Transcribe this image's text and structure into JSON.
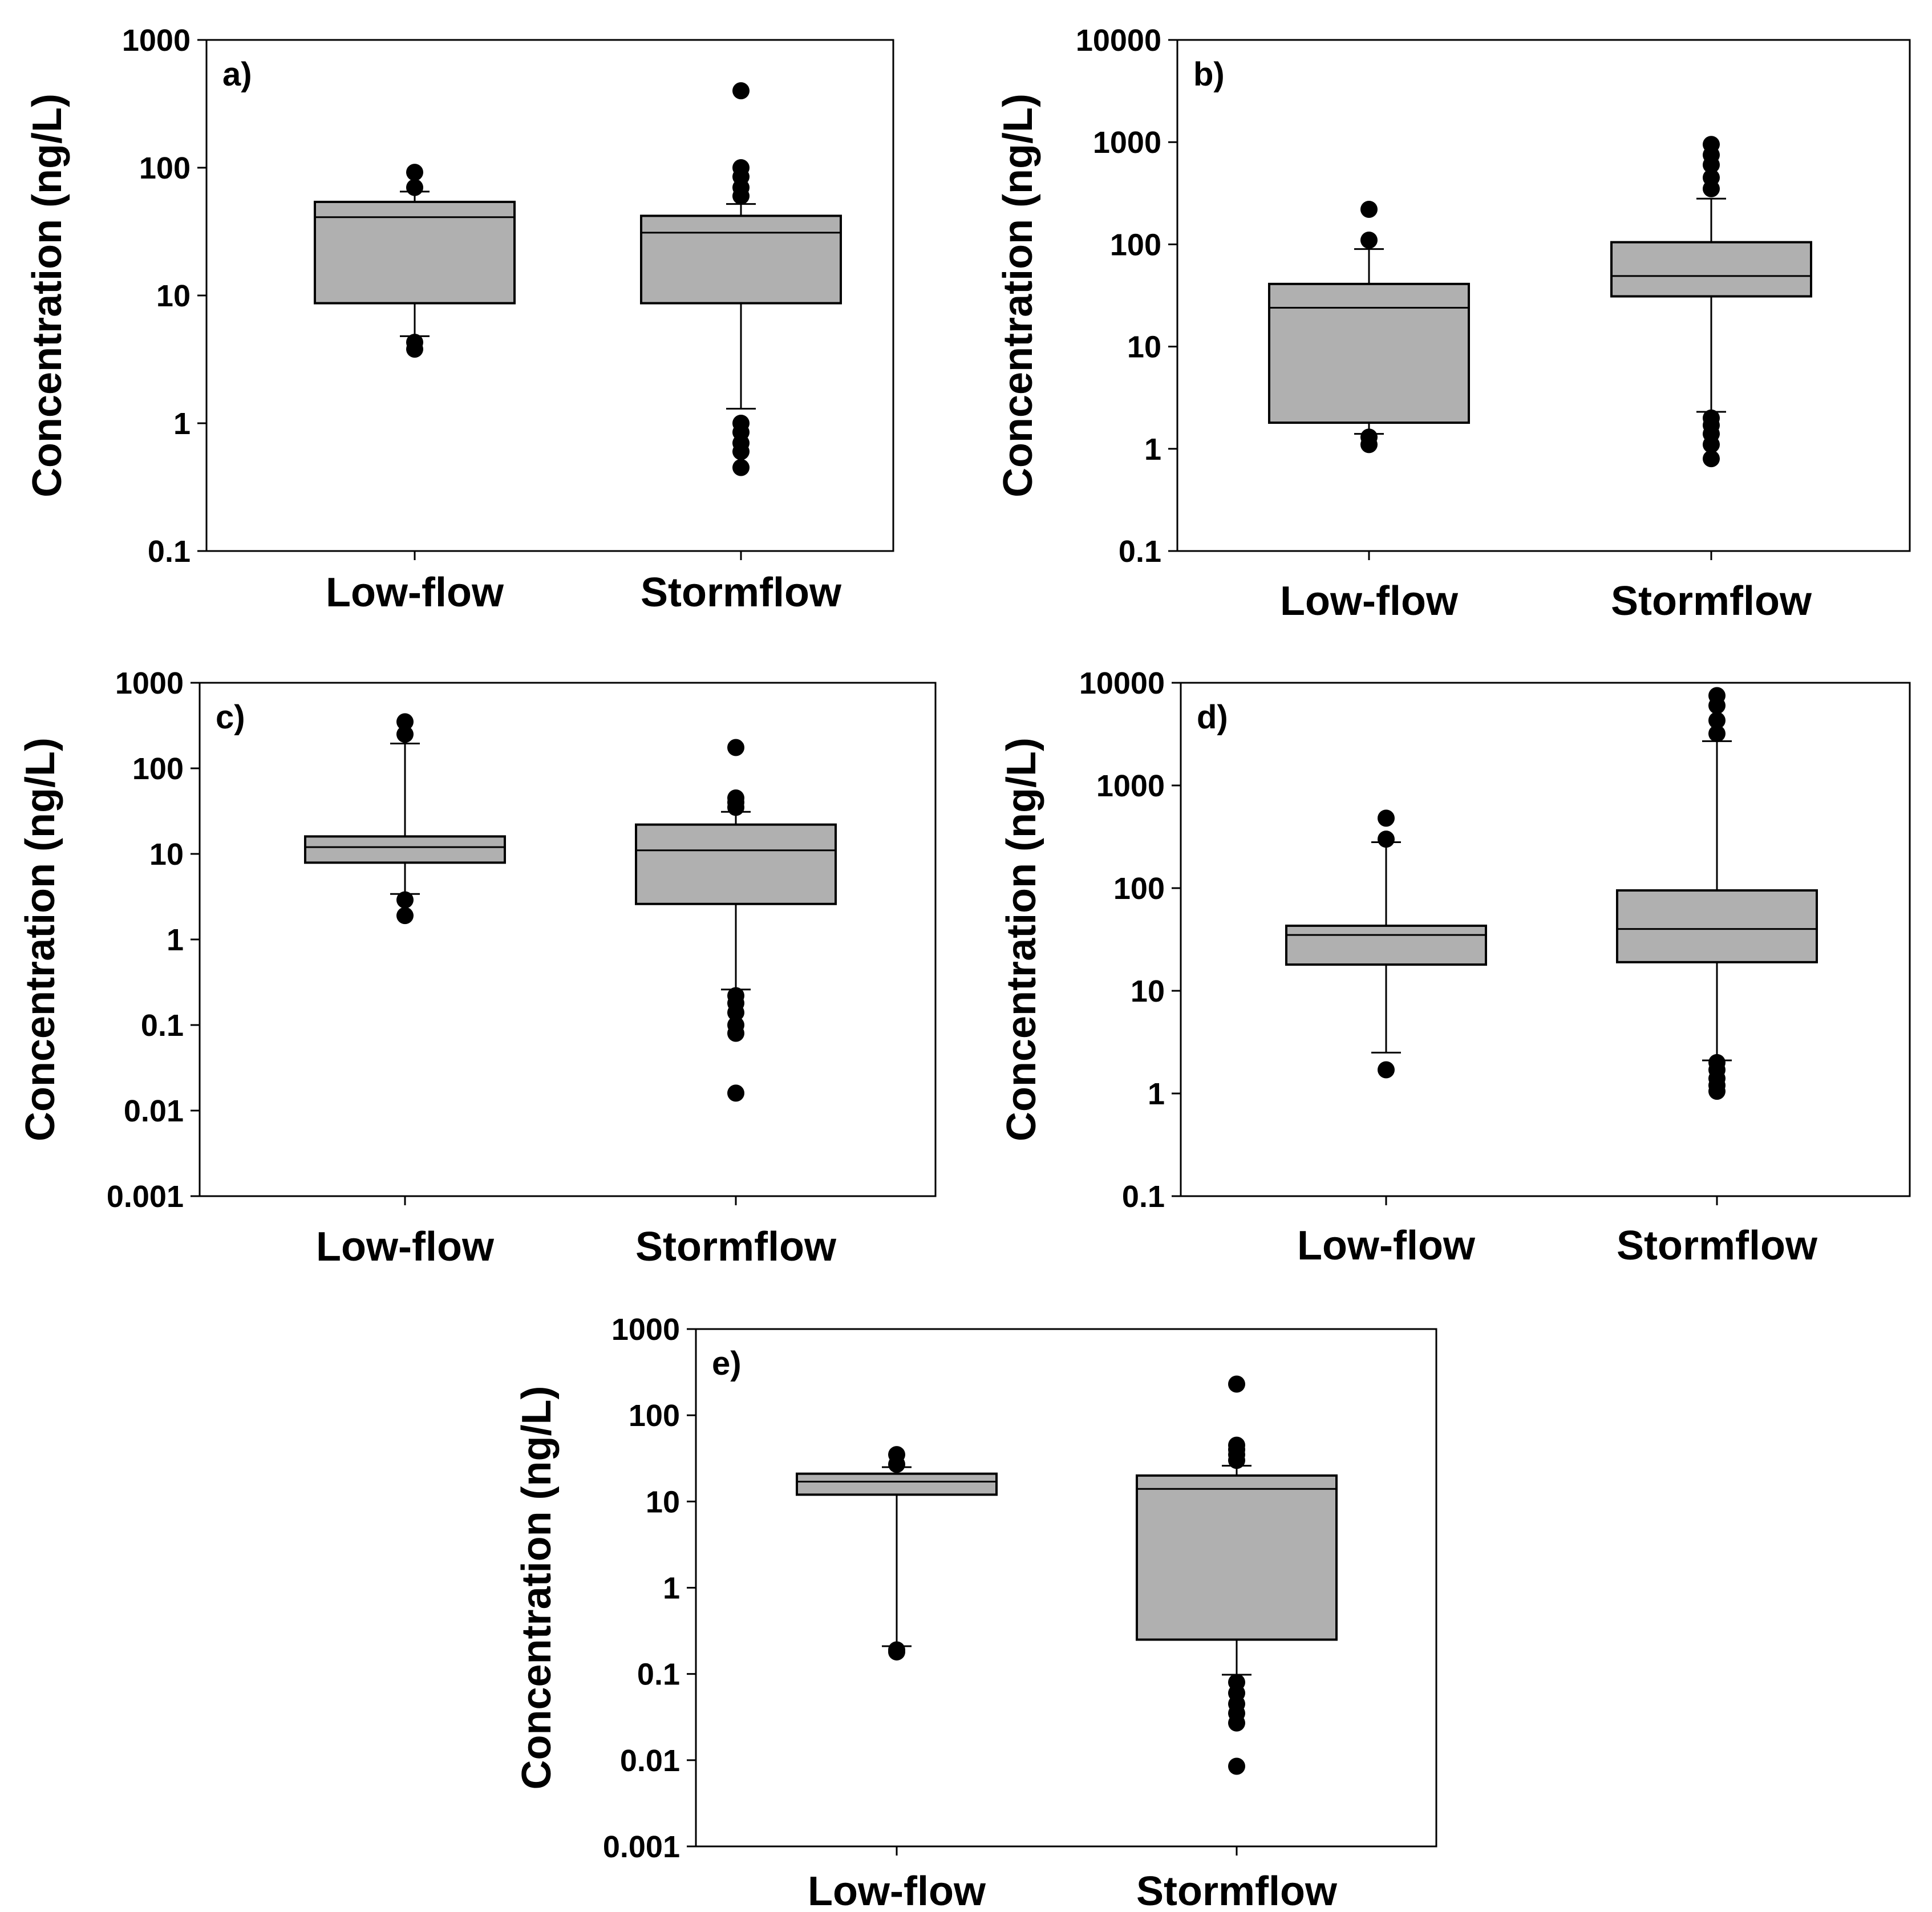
{
  "figure": {
    "background": "#ffffff",
    "box_fill": "#b0b0b0",
    "stroke": "#000000"
  },
  "chart_data": [
    {
      "panel_id": "a",
      "panel_label": "a)",
      "type": "box",
      "scale": "log",
      "ylim": [
        0.1,
        1000
      ],
      "yticks": [
        "0.1",
        "1",
        "10",
        "100",
        "1000"
      ],
      "ylabel": "Concentration (ng/L)",
      "categories": [
        "Low-flow",
        "Stormflow"
      ],
      "boxes": [
        {
          "category": "Low-flow",
          "q1": 8.7,
          "median": 41,
          "q3": 54,
          "whisker_low": 4.8,
          "whisker_high": 65,
          "outliers": [
            3.8,
            4.3,
            70,
            92
          ]
        },
        {
          "category": "Stormflow",
          "q1": 8.7,
          "median": 31,
          "q3": 42,
          "whisker_low": 1.3,
          "whisker_high": 52,
          "outliers": [
            0.45,
            0.6,
            0.7,
            0.85,
            1.0,
            60,
            70,
            85,
            100,
            400
          ]
        }
      ]
    },
    {
      "panel_id": "b",
      "panel_label": "b)",
      "type": "box",
      "scale": "log",
      "ylim": [
        0.1,
        10000
      ],
      "yticks": [
        "0.1",
        "1",
        "10",
        "100",
        "1000",
        "10000"
      ],
      "ylabel": "Concentration (ng/L)",
      "categories": [
        "Low-flow",
        "Stormflow"
      ],
      "boxes": [
        {
          "category": "Low-flow",
          "q1": 1.8,
          "median": 24,
          "q3": 41,
          "whisker_low": 1.4,
          "whisker_high": 90,
          "outliers": [
            1.1,
            1.3,
            110,
            220
          ]
        },
        {
          "category": "Stormflow",
          "q1": 31,
          "median": 49,
          "q3": 105,
          "whisker_low": 2.3,
          "whisker_high": 280,
          "outliers": [
            0.8,
            1.1,
            1.4,
            1.7,
            2.0,
            350,
            450,
            600,
            750,
            950
          ]
        }
      ]
    },
    {
      "panel_id": "c",
      "panel_label": "c)",
      "type": "box",
      "scale": "log",
      "ylim": [
        0.001,
        1000
      ],
      "yticks": [
        "0.001",
        "0.01",
        "0.1",
        "1",
        "10",
        "100",
        "1000"
      ],
      "ylabel": "Concentration (ng/L)",
      "categories": [
        "Low-flow",
        "Stormflow"
      ],
      "boxes": [
        {
          "category": "Low-flow",
          "q1": 7.9,
          "median": 12,
          "q3": 16,
          "whisker_low": 3.4,
          "whisker_high": 195,
          "outliers": [
            1.9,
            2.9,
            250,
            350
          ]
        },
        {
          "category": "Stormflow",
          "q1": 2.6,
          "median": 11,
          "q3": 22,
          "whisker_low": 0.26,
          "whisker_high": 31,
          "outliers": [
            0.016,
            0.08,
            0.1,
            0.14,
            0.18,
            0.22,
            35,
            40,
            45,
            175
          ]
        }
      ]
    },
    {
      "panel_id": "d",
      "panel_label": "d)",
      "type": "box",
      "scale": "log",
      "ylim": [
        0.1,
        10000
      ],
      "yticks": [
        "0.1",
        "1",
        "10",
        "100",
        "1000",
        "10000"
      ],
      "ylabel": "Concentration (ng/L)",
      "categories": [
        "Low-flow",
        "Stormflow"
      ],
      "boxes": [
        {
          "category": "Low-flow",
          "q1": 18,
          "median": 35,
          "q3": 43,
          "whisker_low": 2.5,
          "whisker_high": 280,
          "outliers": [
            1.7,
            300,
            480
          ]
        },
        {
          "category": "Stormflow",
          "q1": 19,
          "median": 40,
          "q3": 95,
          "whisker_low": 2.1,
          "whisker_high": 2700,
          "outliers": [
            1.05,
            1.2,
            1.4,
            1.7,
            2.0,
            3200,
            4300,
            6000,
            7500
          ]
        }
      ]
    },
    {
      "panel_id": "e",
      "panel_label": "e)",
      "type": "box",
      "scale": "log",
      "ylim": [
        0.001,
        1000
      ],
      "yticks": [
        "0.001",
        "0.01",
        "0.1",
        "1",
        "10",
        "100",
        "1000"
      ],
      "ylabel": "Concentration (ng/L)",
      "categories": [
        "Low-flow",
        "Stormflow"
      ],
      "boxes": [
        {
          "category": "Low-flow",
          "q1": 12,
          "median": 17,
          "q3": 21,
          "whisker_low": 0.21,
          "whisker_high": 25,
          "outliers": [
            0.18,
            0.19,
            27,
            35
          ]
        },
        {
          "category": "Stormflow",
          "q1": 0.25,
          "median": 14,
          "q3": 20,
          "whisker_low": 0.098,
          "whisker_high": 26,
          "outliers": [
            0.0085,
            0.027,
            0.035,
            0.045,
            0.06,
            0.08,
            30,
            35,
            40,
            45,
            230
          ]
        }
      ]
    }
  ]
}
